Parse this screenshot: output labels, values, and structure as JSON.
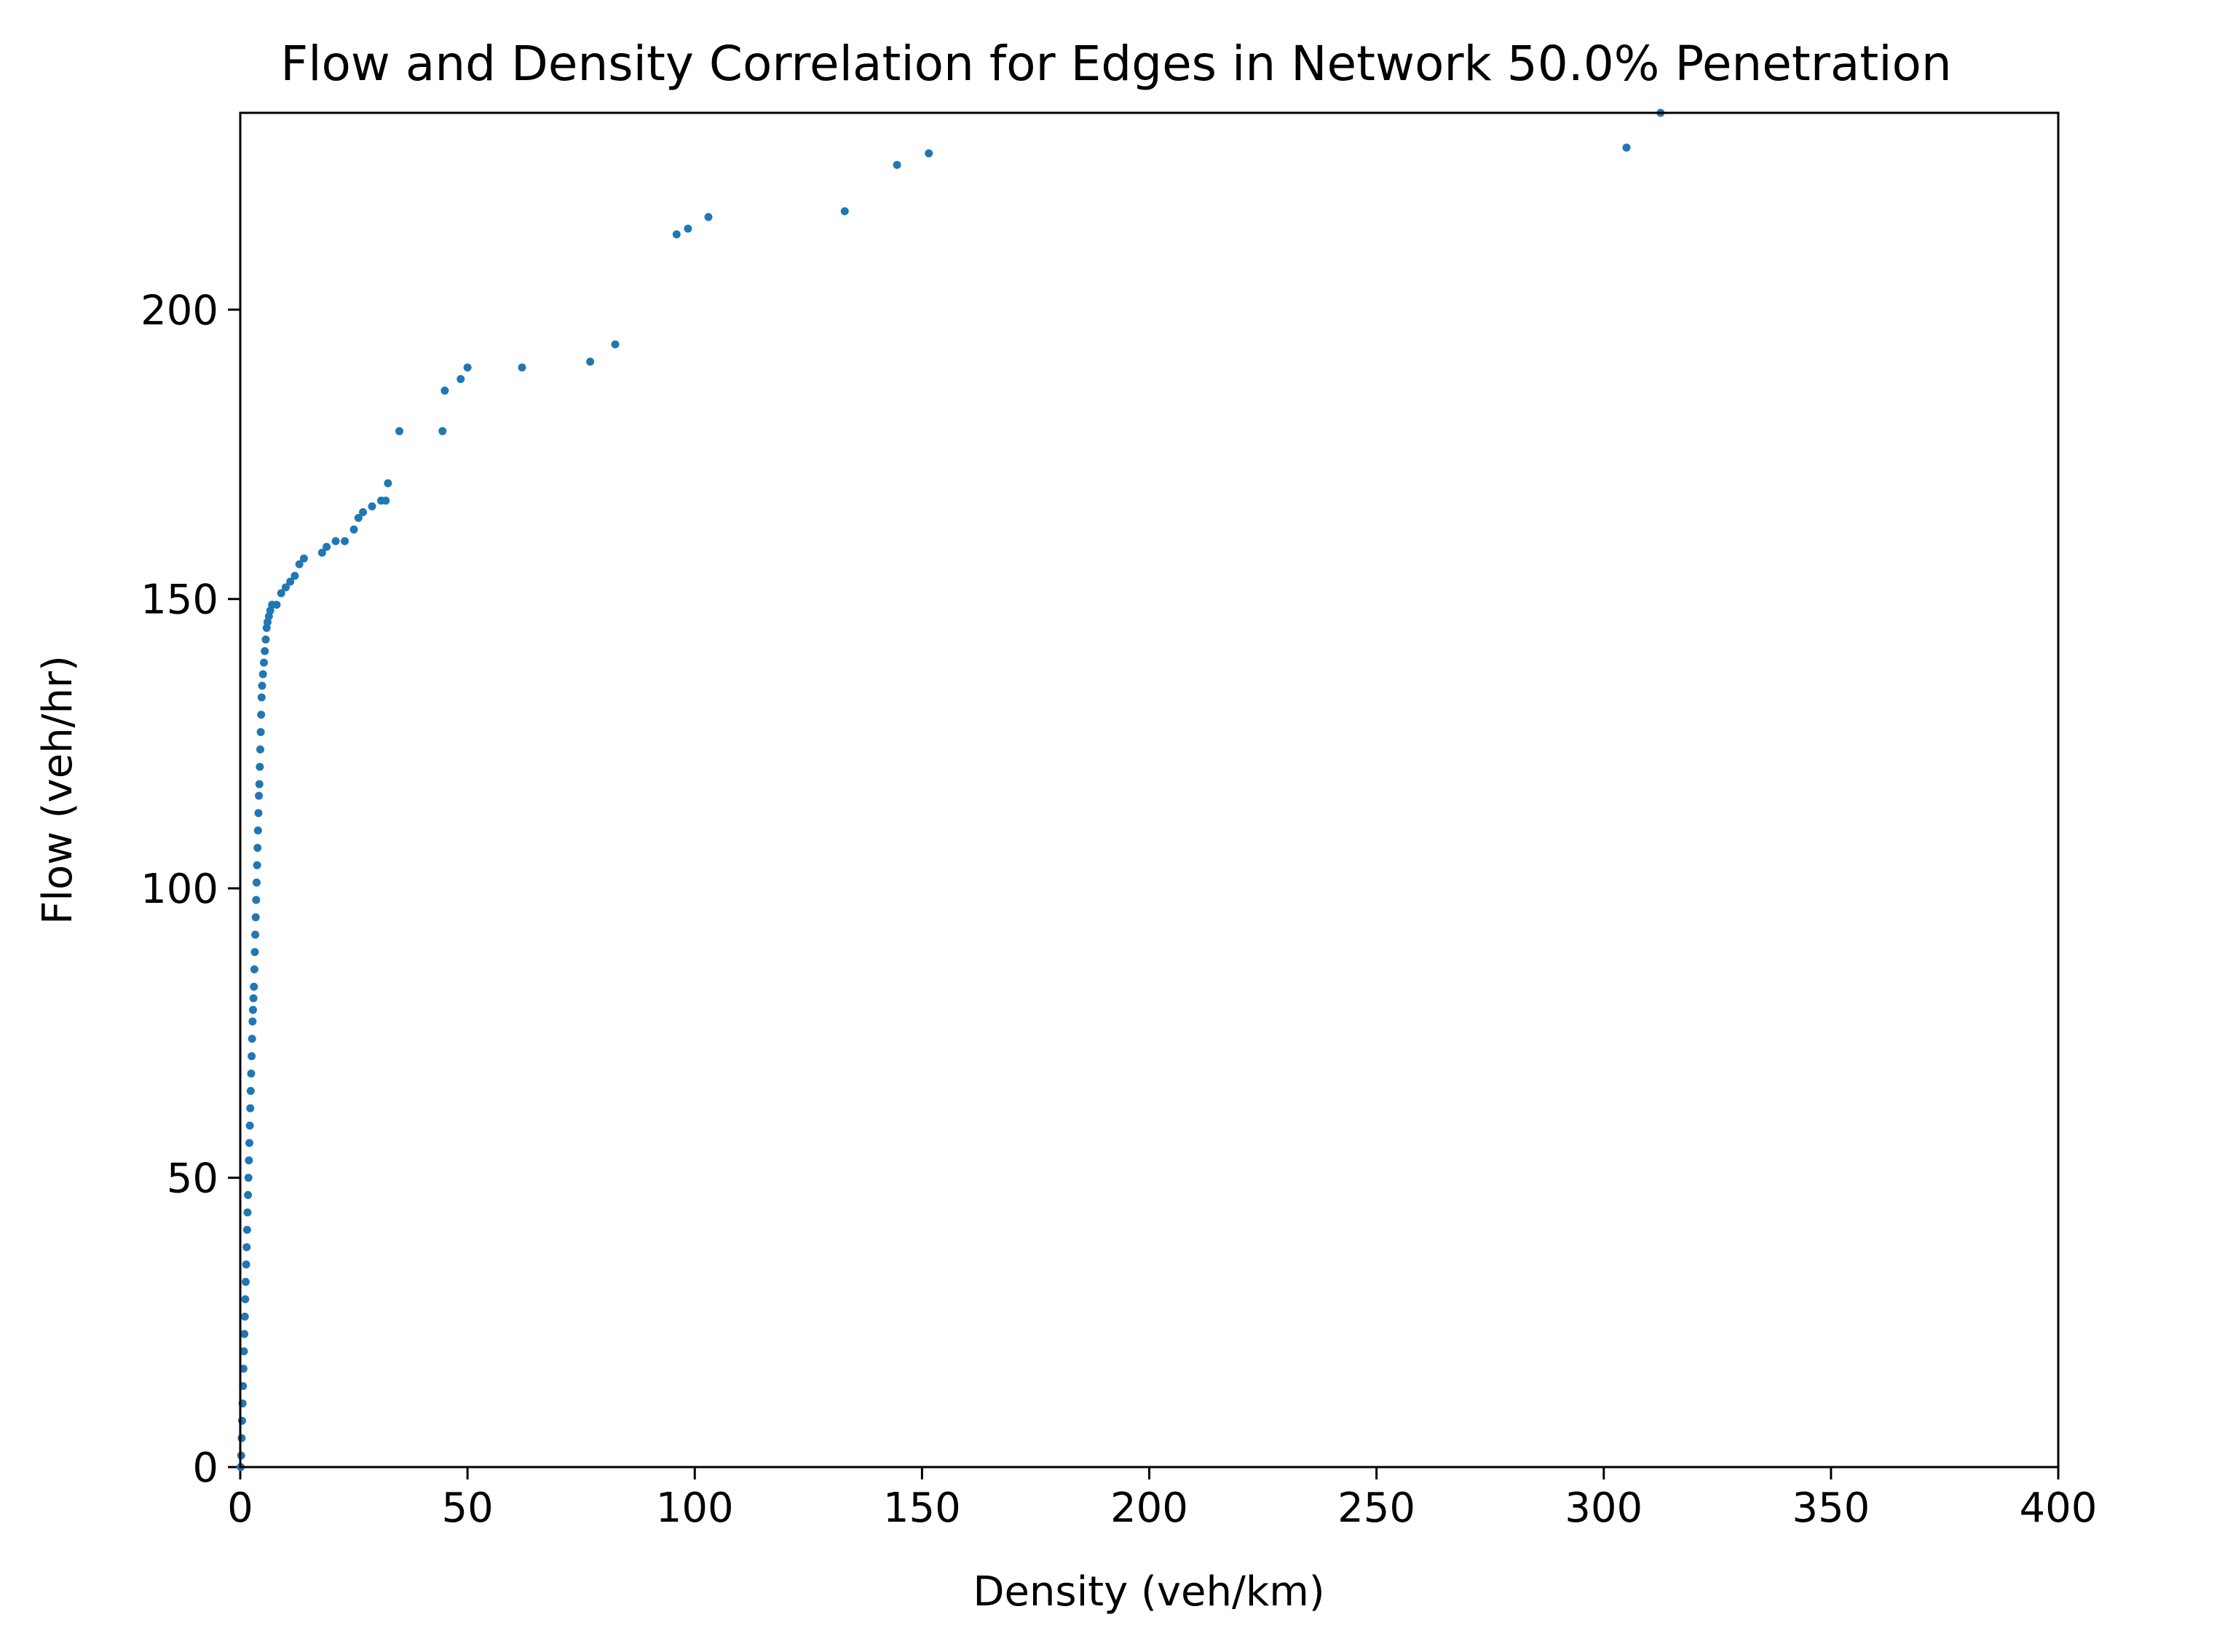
{
  "chart_data": {
    "type": "scatter",
    "title": "Flow and Density Correlation for Edges in Network 50.0% Penetration",
    "xlabel": "Density (veh/km)",
    "ylabel": "Flow (veh/hr)",
    "xlim": [
      0,
      400
    ],
    "ylim": [
      0,
      234
    ],
    "xticks": [
      0,
      50,
      100,
      150,
      200,
      250,
      300,
      350,
      400
    ],
    "yticks": [
      0,
      50,
      100,
      150,
      200
    ],
    "grid": false,
    "legend": "none",
    "marker_color": "#1f77b4",
    "series": [
      {
        "points": [
          [
            0.1,
            0
          ],
          [
            0.2,
            2
          ],
          [
            0.3,
            5
          ],
          [
            0.4,
            8
          ],
          [
            0.5,
            11
          ],
          [
            0.6,
            14
          ],
          [
            0.7,
            17
          ],
          [
            0.8,
            20
          ],
          [
            0.9,
            23
          ],
          [
            1.0,
            26
          ],
          [
            1.1,
            29
          ],
          [
            1.2,
            32
          ],
          [
            1.3,
            35
          ],
          [
            1.4,
            38
          ],
          [
            1.5,
            41
          ],
          [
            1.6,
            44
          ],
          [
            1.7,
            47
          ],
          [
            1.8,
            50
          ],
          [
            1.9,
            53
          ],
          [
            2.0,
            56
          ],
          [
            2.1,
            59
          ],
          [
            2.2,
            62
          ],
          [
            2.3,
            65
          ],
          [
            2.4,
            68
          ],
          [
            2.5,
            71
          ],
          [
            2.6,
            74
          ],
          [
            2.7,
            77
          ],
          [
            2.8,
            79
          ],
          [
            2.9,
            81
          ],
          [
            3.0,
            83
          ],
          [
            3.1,
            86
          ],
          [
            3.2,
            89
          ],
          [
            3.3,
            92
          ],
          [
            3.4,
            95
          ],
          [
            3.5,
            98
          ],
          [
            3.6,
            101
          ],
          [
            3.7,
            104
          ],
          [
            3.8,
            107
          ],
          [
            3.9,
            110
          ],
          [
            4.0,
            113
          ],
          [
            4.1,
            116
          ],
          [
            4.2,
            118
          ],
          [
            4.3,
            121
          ],
          [
            4.4,
            124
          ],
          [
            4.5,
            127
          ],
          [
            4.6,
            130
          ],
          [
            4.7,
            133
          ],
          [
            4.8,
            135
          ],
          [
            5.0,
            137
          ],
          [
            5.2,
            139
          ],
          [
            5.4,
            141
          ],
          [
            5.6,
            143
          ],
          [
            5.8,
            145
          ],
          [
            6.0,
            146
          ],
          [
            6.3,
            147
          ],
          [
            6.6,
            148
          ],
          [
            7.0,
            149
          ],
          [
            8.0,
            149
          ],
          [
            9.0,
            151
          ],
          [
            10.0,
            152
          ],
          [
            11.0,
            153
          ],
          [
            12.0,
            154
          ],
          [
            13.0,
            156
          ],
          [
            14.0,
            157
          ],
          [
            18.0,
            158
          ],
          [
            19.0,
            159
          ],
          [
            21.0,
            160
          ],
          [
            23.0,
            160
          ],
          [
            25.0,
            162
          ],
          [
            26.0,
            164
          ],
          [
            27.0,
            165
          ],
          [
            29.0,
            166
          ],
          [
            31.0,
            167
          ],
          [
            32.0,
            167
          ],
          [
            32.5,
            170
          ],
          [
            35.0,
            179
          ],
          [
            44.5,
            179
          ],
          [
            45.0,
            186
          ],
          [
            48.5,
            188
          ],
          [
            50.0,
            190
          ],
          [
            62.0,
            190
          ],
          [
            77.0,
            191
          ],
          [
            82.5,
            194
          ],
          [
            96.0,
            213
          ],
          [
            98.5,
            214
          ],
          [
            103.0,
            216
          ],
          [
            133.0,
            217
          ],
          [
            144.5,
            225
          ],
          [
            151.5,
            227
          ],
          [
            305.0,
            228
          ],
          [
            312.5,
            234
          ]
        ]
      }
    ]
  }
}
